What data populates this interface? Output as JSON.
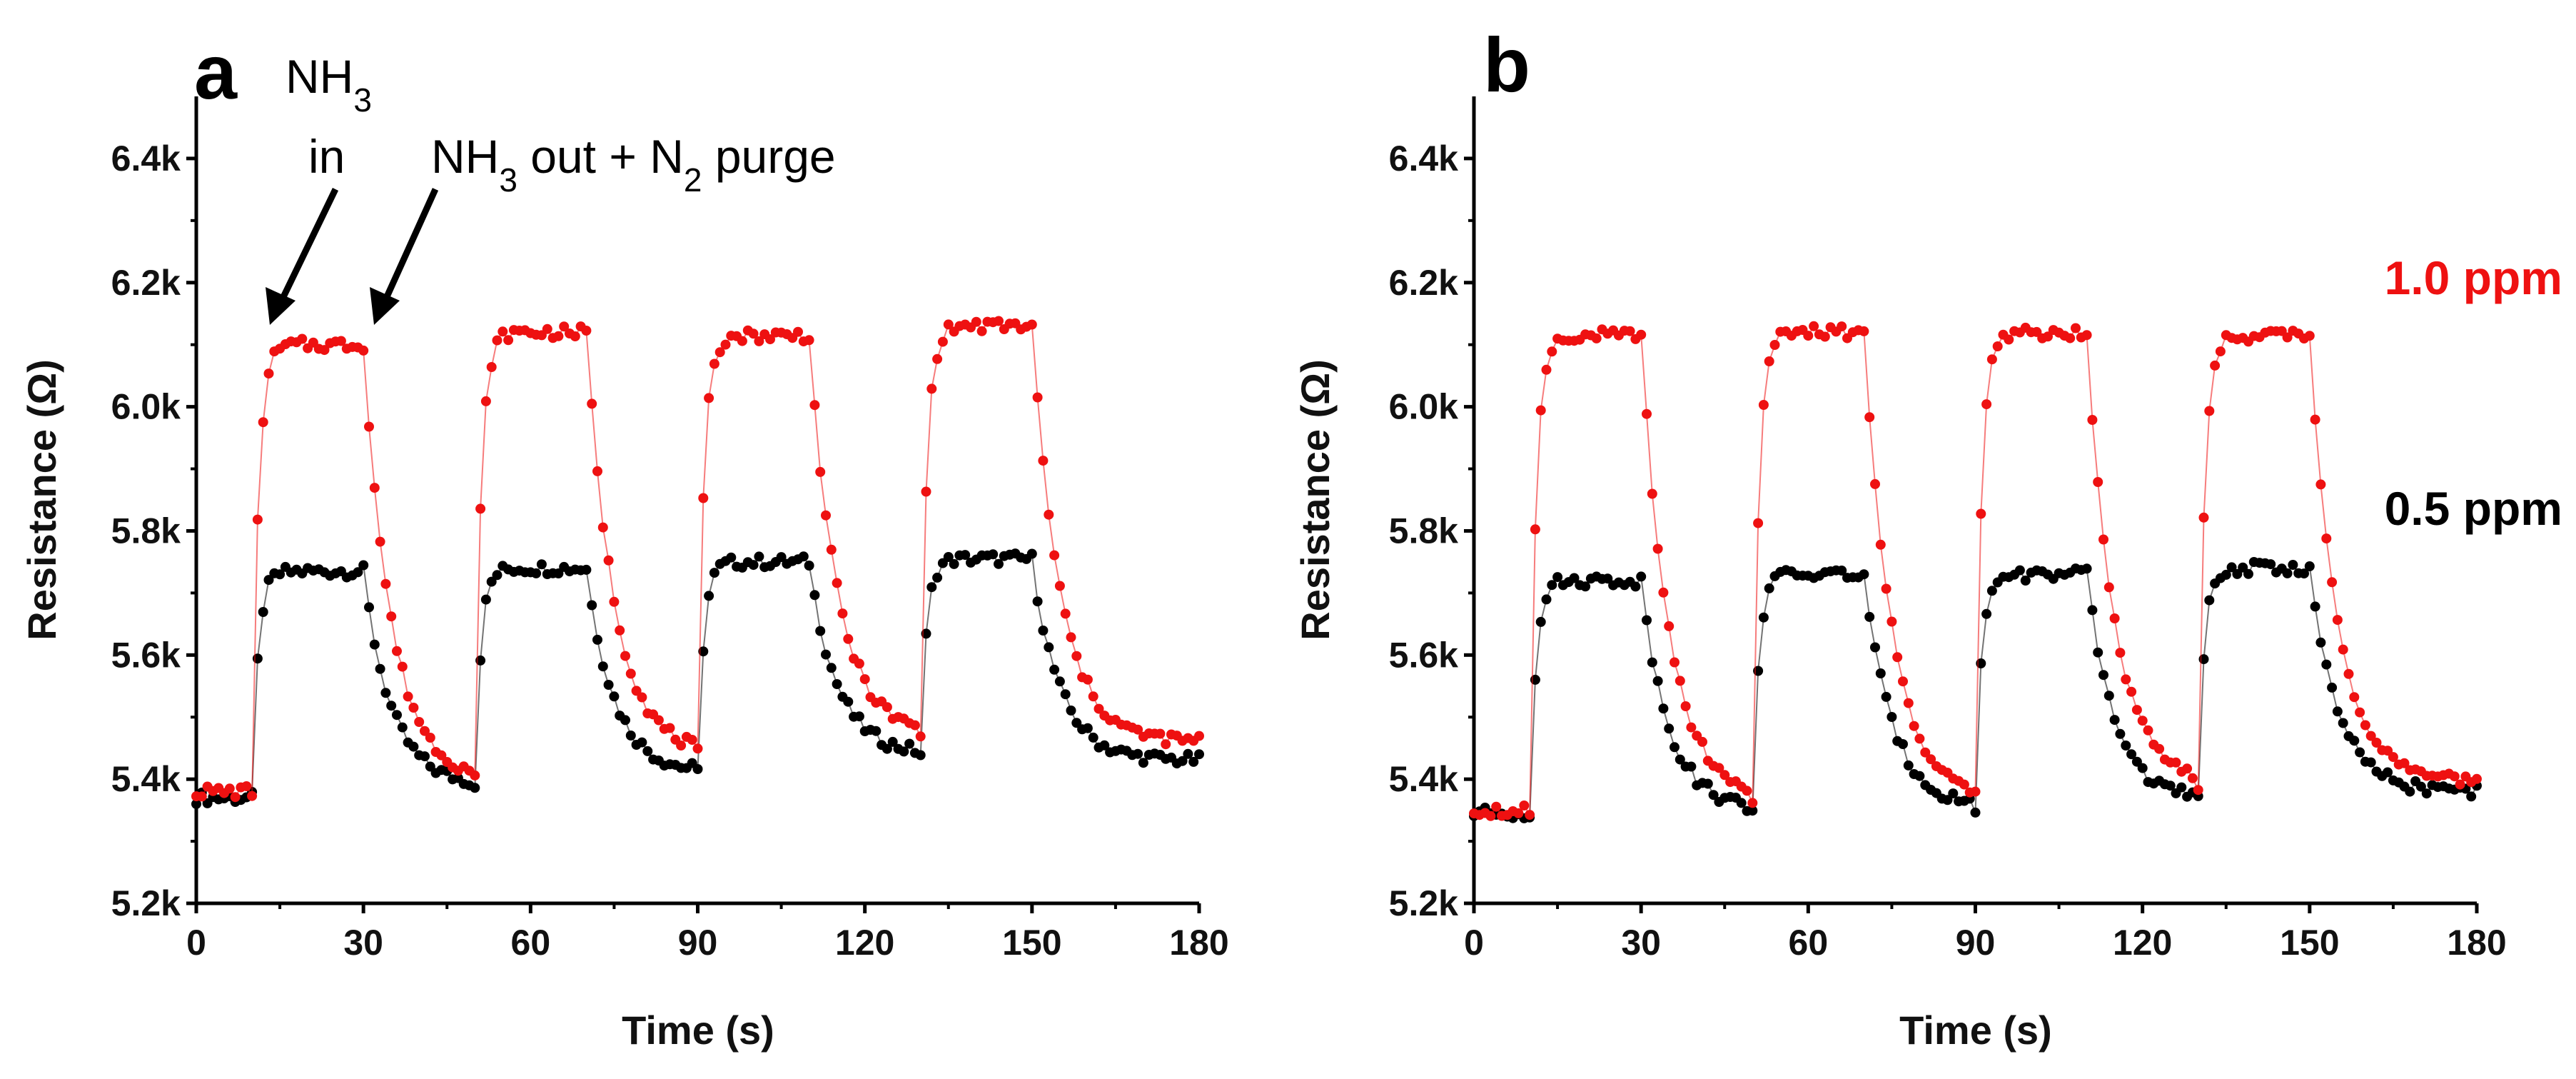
{
  "chart_data": [
    {
      "type": "scatter",
      "panel": "a",
      "xlabel": "Time (s)",
      "ylabel": "Resistance (Ω)",
      "xlim": [
        0,
        180
      ],
      "ylim": [
        5200,
        6500
      ],
      "xticks": [
        0,
        30,
        60,
        90,
        120,
        150,
        180
      ],
      "xtick_labels": [
        "0",
        "30",
        "60",
        "90",
        "120",
        "150",
        "180"
      ],
      "yticks": [
        5200,
        5400,
        5600,
        5800,
        6000,
        6200,
        6400
      ],
      "ytick_labels": [
        "5.2k",
        "5.4k",
        "5.6k",
        "5.8k",
        "6.0k",
        "6.2k",
        "6.4k"
      ],
      "grid": false,
      "annotations": [
        {
          "text_main": "NH",
          "sub": "3",
          "text_rest": "",
          "line2": "in",
          "x": 15,
          "y": 6130
        },
        {
          "text_main": "NH",
          "sub": "3",
          "text_rest": " out + N",
          "sub2": "2",
          "text_end": " purge",
          "x": 33,
          "y": 6130
        }
      ],
      "series": [
        {
          "name": "1.0 ppm",
          "color": "#ee1111",
          "cycles": [
            {
              "on": 10,
              "off": 30,
              "base0": 5380,
              "plateau": 6100,
              "base1": 5400
            },
            {
              "on": 50,
              "off": 70,
              "base0": 5400,
              "plateau": 6120,
              "base1": 5440
            },
            {
              "on": 90,
              "off": 110,
              "base0": 5440,
              "plateau": 6115,
              "base1": 5470
            },
            {
              "on": 130,
              "off": 150,
              "base0": 5470,
              "plateau": 6130,
              "base1": 5460
            }
          ]
        },
        {
          "name": "0.5 ppm",
          "color": "#000000",
          "cycles": [
            {
              "on": 10,
              "off": 30,
              "base0": 5370,
              "plateau": 5735,
              "base1": 5390
            },
            {
              "on": 50,
              "off": 70,
              "base0": 5390,
              "plateau": 5740,
              "base1": 5410
            },
            {
              "on": 90,
              "off": 110,
              "base0": 5410,
              "plateau": 5750,
              "base1": 5440
            },
            {
              "on": 130,
              "off": 150,
              "base0": 5440,
              "plateau": 5755,
              "base1": 5430
            }
          ]
        }
      ]
    },
    {
      "type": "scatter",
      "panel": "b",
      "xlabel": "Time (s)",
      "ylabel": "Resistance (Ω)",
      "xlim": [
        0,
        180
      ],
      "ylim": [
        5200,
        6500
      ],
      "xticks": [
        0,
        30,
        60,
        90,
        120,
        150,
        180
      ],
      "xtick_labels": [
        "0",
        "30",
        "60",
        "90",
        "120",
        "150",
        "180"
      ],
      "yticks": [
        5200,
        5400,
        5600,
        5800,
        6000,
        6200,
        6400
      ],
      "ytick_labels": [
        "5.2k",
        "5.4k",
        "5.6k",
        "5.8k",
        "6.0k",
        "6.2k",
        "6.4k"
      ],
      "grid": false,
      "legend": [
        {
          "label": "1.0 ppm",
          "color": "#ee1111"
        },
        {
          "label": "0.5 ppm",
          "color": "#000000"
        }
      ],
      "series": [
        {
          "name": "1.0 ppm",
          "color": "#ee1111",
          "cycles": [
            {
              "on": 10,
              "off": 30,
              "base0": 5350,
              "plateau": 6115,
              "base1": 5370
            },
            {
              "on": 50,
              "off": 70,
              "base0": 5370,
              "plateau": 6120,
              "base1": 5370
            },
            {
              "on": 90,
              "off": 110,
              "base0": 5370,
              "plateau": 6120,
              "base1": 5390
            },
            {
              "on": 130,
              "off": 150,
              "base0": 5390,
              "plateau": 6115,
              "base1": 5395
            }
          ]
        },
        {
          "name": "0.5 ppm",
          "color": "#000000",
          "cycles": [
            {
              "on": 10,
              "off": 30,
              "base0": 5345,
              "plateau": 5720,
              "base1": 5350
            },
            {
              "on": 50,
              "off": 70,
              "base0": 5350,
              "plateau": 5730,
              "base1": 5355
            },
            {
              "on": 90,
              "off": 110,
              "base0": 5355,
              "plateau": 5730,
              "base1": 5365
            },
            {
              "on": 130,
              "off": 150,
              "base0": 5365,
              "plateau": 5740,
              "base1": 5380
            }
          ]
        }
      ]
    }
  ]
}
